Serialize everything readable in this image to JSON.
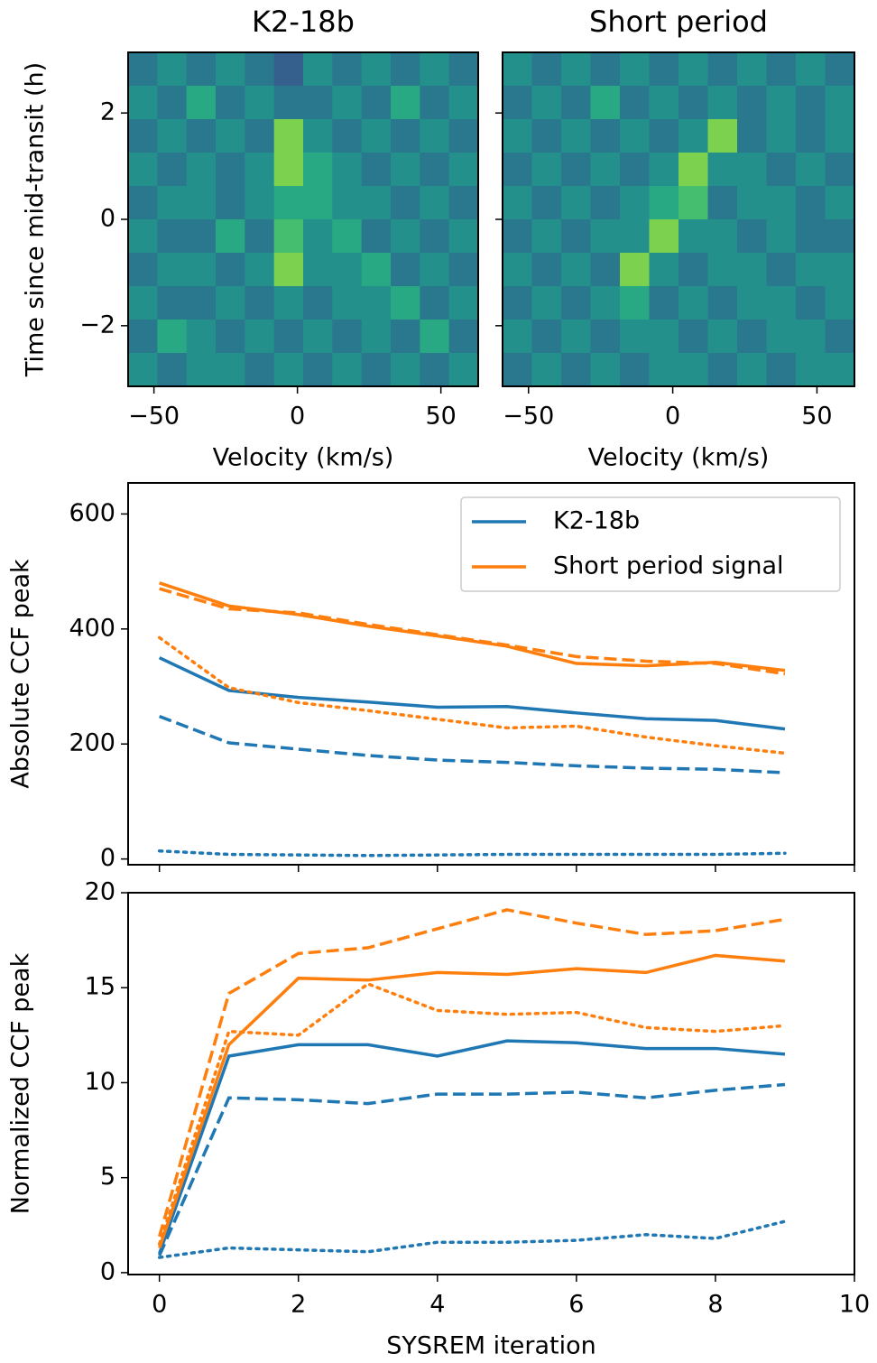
{
  "chart_data": [
    {
      "type": "heatmap",
      "title": "K2-18b",
      "x_label": "Velocity (km/s)",
      "y_label": "Time since mid-transit (h)",
      "colormap": "viridis",
      "zlim": [
        0,
        1
      ],
      "xlim": [
        -59,
        63
      ],
      "ylim": [
        -3.14,
        3.14
      ],
      "xticks": [
        {
          "value": -50,
          "label": "−50"
        },
        0,
        50
      ],
      "yticks": [
        {
          "value": -2,
          "label": "−2"
        },
        0,
        2
      ],
      "z": [
        [
          0.4,
          0.5,
          0.4,
          0.5,
          0.4,
          0.3,
          0.5,
          0.4,
          0.5,
          0.4,
          0.5,
          0.4
        ],
        [
          0.5,
          0.4,
          0.6,
          0.4,
          0.5,
          0.4,
          0.4,
          0.5,
          0.4,
          0.6,
          0.4,
          0.5
        ],
        [
          0.4,
          0.5,
          0.4,
          0.5,
          0.4,
          0.8,
          0.5,
          0.4,
          0.5,
          0.4,
          0.5,
          0.4
        ],
        [
          0.5,
          0.4,
          0.5,
          0.4,
          0.5,
          0.8,
          0.6,
          0.5,
          0.4,
          0.5,
          0.4,
          0.5
        ],
        [
          0.4,
          0.5,
          0.5,
          0.4,
          0.5,
          0.6,
          0.6,
          0.5,
          0.5,
          0.4,
          0.5,
          0.4
        ],
        [
          0.5,
          0.4,
          0.4,
          0.6,
          0.4,
          0.7,
          0.5,
          0.6,
          0.4,
          0.5,
          0.4,
          0.5
        ],
        [
          0.4,
          0.5,
          0.5,
          0.4,
          0.5,
          0.8,
          0.5,
          0.5,
          0.6,
          0.4,
          0.5,
          0.4
        ],
        [
          0.5,
          0.4,
          0.4,
          0.5,
          0.4,
          0.5,
          0.4,
          0.5,
          0.5,
          0.6,
          0.4,
          0.5
        ],
        [
          0.4,
          0.6,
          0.5,
          0.4,
          0.5,
          0.4,
          0.5,
          0.4,
          0.5,
          0.4,
          0.6,
          0.4
        ],
        [
          0.5,
          0.4,
          0.5,
          0.5,
          0.4,
          0.5,
          0.4,
          0.5,
          0.4,
          0.5,
          0.4,
          0.5
        ]
      ]
    },
    {
      "type": "heatmap",
      "title": "Short period",
      "x_label": "Velocity (km/s)",
      "show_yticklabels": false,
      "colormap": "viridis",
      "zlim": [
        0,
        1
      ],
      "xlim": [
        -59,
        63
      ],
      "ylim": [
        -3.14,
        3.14
      ],
      "xticks": [
        {
          "value": -50,
          "label": "−50"
        },
        0,
        50
      ],
      "yticks": [
        -2,
        0,
        2
      ],
      "z": [
        [
          0.5,
          0.4,
          0.5,
          0.4,
          0.5,
          0.4,
          0.5,
          0.4,
          0.5,
          0.4,
          0.5,
          0.4
        ],
        [
          0.4,
          0.5,
          0.4,
          0.6,
          0.4,
          0.5,
          0.4,
          0.5,
          0.4,
          0.5,
          0.4,
          0.5
        ],
        [
          0.5,
          0.4,
          0.5,
          0.4,
          0.5,
          0.4,
          0.5,
          0.8,
          0.4,
          0.5,
          0.4,
          0.5
        ],
        [
          0.4,
          0.5,
          0.4,
          0.5,
          0.4,
          0.5,
          0.8,
          0.5,
          0.5,
          0.4,
          0.5,
          0.4
        ],
        [
          0.5,
          0.4,
          0.5,
          0.4,
          0.5,
          0.6,
          0.7,
          0.4,
          0.5,
          0.5,
          0.4,
          0.5
        ],
        [
          0.4,
          0.5,
          0.4,
          0.5,
          0.5,
          0.8,
          0.5,
          0.5,
          0.4,
          0.5,
          0.4,
          0.4
        ],
        [
          0.5,
          0.4,
          0.5,
          0.4,
          0.8,
          0.5,
          0.4,
          0.5,
          0.5,
          0.4,
          0.5,
          0.5
        ],
        [
          0.4,
          0.5,
          0.4,
          0.5,
          0.6,
          0.4,
          0.5,
          0.4,
          0.5,
          0.5,
          0.4,
          0.5
        ],
        [
          0.5,
          0.4,
          0.5,
          0.4,
          0.5,
          0.5,
          0.4,
          0.5,
          0.4,
          0.5,
          0.5,
          0.4
        ],
        [
          0.4,
          0.5,
          0.4,
          0.5,
          0.4,
          0.5,
          0.5,
          0.4,
          0.5,
          0.4,
          0.5,
          0.5
        ]
      ]
    },
    {
      "type": "line",
      "y_label": "Absolute CCF peak",
      "show_xticklabels": false,
      "legend": "upper right",
      "xlim": [
        -0.45,
        10
      ],
      "ylim": [
        -10,
        654
      ],
      "xticks": [
        0,
        2,
        4,
        6,
        8,
        10
      ],
      "yticks": [
        0,
        200,
        400,
        600
      ],
      "x": [
        0,
        1,
        2,
        3,
        4,
        5,
        6,
        7,
        8,
        9
      ],
      "series": [
        {
          "name": "K2-18b",
          "color": "#1f77b4",
          "dash": "solid",
          "values": [
            350,
            293,
            281,
            273,
            264,
            265,
            254,
            244,
            241,
            226
          ]
        },
        {
          "color": "#1f77b4",
          "dash": "dashed",
          "values": [
            248,
            202,
            191,
            180,
            172,
            168,
            162,
            158,
            156,
            150
          ]
        },
        {
          "color": "#1f77b4",
          "dash": "dotted",
          "values": [
            14,
            8,
            7,
            6,
            7,
            8,
            8,
            8,
            8,
            10
          ]
        },
        {
          "name": "Short period signal",
          "color": "#ff7f0e",
          "dash": "solid",
          "values": [
            480,
            440,
            425,
            405,
            388,
            370,
            340,
            336,
            342,
            328
          ]
        },
        {
          "color": "#ff7f0e",
          "dash": "dashed",
          "values": [
            470,
            435,
            428,
            408,
            390,
            372,
            352,
            344,
            340,
            322
          ]
        },
        {
          "color": "#ff7f0e",
          "dash": "dotted",
          "values": [
            385,
            298,
            272,
            258,
            243,
            228,
            231,
            212,
            197,
            184
          ]
        }
      ]
    },
    {
      "type": "line",
      "y_label": "Normalized CCF peak",
      "x_label": "SYSREM iteration",
      "xlim": [
        -0.45,
        10
      ],
      "ylim": [
        -0.1,
        20
      ],
      "xticks": [
        0,
        2,
        4,
        6,
        8,
        10
      ],
      "yticks": [
        0,
        5,
        10,
        15,
        20
      ],
      "x": [
        0,
        1,
        2,
        3,
        4,
        5,
        6,
        7,
        8,
        9
      ],
      "series": [
        {
          "color": "#1f77b4",
          "dash": "solid",
          "values": [
            1.0,
            11.4,
            12.0,
            12.0,
            11.4,
            12.2,
            12.1,
            11.8,
            11.8,
            11.5
          ]
        },
        {
          "color": "#1f77b4",
          "dash": "dashed",
          "values": [
            0.9,
            9.2,
            9.1,
            8.9,
            9.4,
            9.4,
            9.5,
            9.2,
            9.6,
            9.9
          ]
        },
        {
          "color": "#1f77b4",
          "dash": "dotted",
          "values": [
            0.8,
            1.3,
            1.2,
            1.1,
            1.6,
            1.6,
            1.7,
            2.0,
            1.8,
            2.7
          ]
        },
        {
          "color": "#ff7f0e",
          "dash": "solid",
          "values": [
            1.3,
            12.0,
            15.5,
            15.4,
            15.8,
            15.7,
            16.0,
            15.8,
            16.7,
            16.4
          ]
        },
        {
          "color": "#ff7f0e",
          "dash": "dashed",
          "values": [
            1.9,
            14.7,
            16.8,
            17.1,
            18.1,
            19.1,
            18.4,
            17.8,
            18.0,
            18.6
          ]
        },
        {
          "color": "#ff7f0e",
          "dash": "dotted",
          "values": [
            1.5,
            12.7,
            12.5,
            15.2,
            13.8,
            13.6,
            13.7,
            12.9,
            12.7,
            13.0
          ]
        }
      ]
    }
  ]
}
